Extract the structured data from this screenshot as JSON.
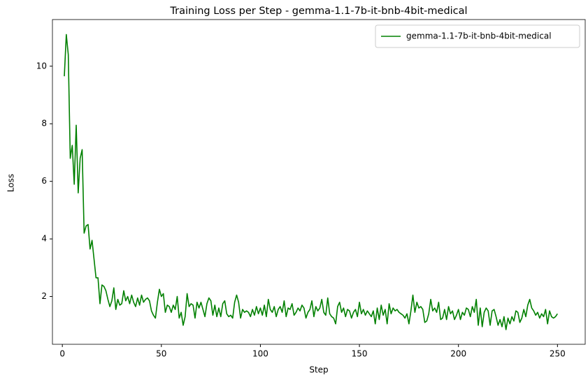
{
  "chart_data": {
    "type": "line",
    "title": "Training Loss per Step - gemma-1.1-7b-it-bnb-4bit-medical",
    "x_label": "Step",
    "y_label": "Loss",
    "x": [
      1,
      2,
      3,
      4,
      5,
      6,
      7,
      8,
      9,
      10,
      11,
      12,
      13,
      14,
      15,
      16,
      17,
      18,
      19,
      20,
      21,
      22,
      23,
      24,
      25,
      26,
      27,
      28,
      29,
      30,
      31,
      32,
      33,
      34,
      35,
      36,
      37,
      38,
      39,
      40,
      41,
      42,
      43,
      44,
      45,
      46,
      47,
      48,
      49,
      50,
      51,
      52,
      53,
      54,
      55,
      56,
      57,
      58,
      59,
      60,
      61,
      62,
      63,
      64,
      65,
      66,
      67,
      68,
      69,
      70,
      71,
      72,
      73,
      74,
      75,
      76,
      77,
      78,
      79,
      80,
      81,
      82,
      83,
      84,
      85,
      86,
      87,
      88,
      89,
      90,
      91,
      92,
      93,
      94,
      95,
      96,
      97,
      98,
      99,
      100,
      101,
      102,
      103,
      104,
      105,
      106,
      107,
      108,
      109,
      110,
      111,
      112,
      113,
      114,
      115,
      116,
      117,
      118,
      119,
      120,
      121,
      122,
      123,
      124,
      125,
      126,
      127,
      128,
      129,
      130,
      131,
      132,
      133,
      134,
      135,
      136,
      137,
      138,
      139,
      140,
      141,
      142,
      143,
      144,
      145,
      146,
      147,
      148,
      149,
      150,
      151,
      152,
      153,
      154,
      155,
      156,
      157,
      158,
      159,
      160,
      161,
      162,
      163,
      164,
      165,
      166,
      167,
      168,
      169,
      170,
      171,
      172,
      173,
      174,
      175,
      176,
      177,
      178,
      179,
      180,
      181,
      182,
      183,
      184,
      185,
      186,
      187,
      188,
      189,
      190,
      191,
      192,
      193,
      194,
      195,
      196,
      197,
      198,
      199,
      200,
      201,
      202,
      203,
      204,
      205,
      206,
      207,
      208,
      209,
      210,
      211,
      212,
      213,
      214,
      215,
      216,
      217,
      218,
      219,
      220,
      221,
      222,
      223,
      224,
      225,
      226,
      227,
      228,
      229,
      230,
      231,
      232,
      233,
      234,
      235,
      236,
      237,
      238,
      239,
      240,
      241,
      242,
      243,
      244,
      245,
      246,
      247,
      248,
      249,
      250
    ],
    "series": [
      {
        "name": "gemma-1.1-7b-it-bnb-4bit-medical",
        "color": "green",
        "values": [
          9.65,
          11.1,
          10.4,
          6.8,
          7.25,
          5.9,
          7.95,
          5.6,
          6.8,
          7.1,
          4.2,
          4.45,
          4.5,
          3.65,
          3.95,
          3.3,
          2.65,
          2.65,
          1.75,
          2.4,
          2.35,
          2.2,
          1.9,
          1.65,
          1.85,
          2.3,
          1.55,
          1.9,
          1.7,
          1.75,
          2.2,
          1.85,
          2.0,
          1.75,
          2.05,
          1.8,
          1.65,
          1.95,
          1.7,
          2.05,
          1.8,
          1.9,
          1.95,
          1.85,
          1.5,
          1.35,
          1.25,
          1.8,
          2.25,
          2.0,
          2.1,
          1.45,
          1.7,
          1.65,
          1.45,
          1.7,
          1.55,
          2.0,
          1.25,
          1.45,
          1.0,
          1.3,
          2.1,
          1.65,
          1.75,
          1.7,
          1.25,
          1.8,
          1.6,
          1.8,
          1.55,
          1.3,
          1.75,
          1.95,
          1.85,
          1.35,
          1.7,
          1.3,
          1.6,
          1.3,
          1.75,
          1.85,
          1.4,
          1.3,
          1.35,
          1.25,
          1.8,
          2.05,
          1.8,
          1.25,
          1.55,
          1.45,
          1.5,
          1.45,
          1.3,
          1.55,
          1.35,
          1.65,
          1.4,
          1.6,
          1.35,
          1.7,
          1.3,
          1.9,
          1.55,
          1.45,
          1.65,
          1.3,
          1.55,
          1.65,
          1.45,
          1.85,
          1.3,
          1.6,
          1.55,
          1.75,
          1.35,
          1.45,
          1.6,
          1.5,
          1.7,
          1.6,
          1.25,
          1.45,
          1.55,
          1.85,
          1.3,
          1.65,
          1.5,
          1.6,
          1.9,
          1.45,
          1.35,
          1.95,
          1.4,
          1.3,
          1.25,
          1.05,
          1.65,
          1.8,
          1.45,
          1.6,
          1.3,
          1.55,
          1.5,
          1.25,
          1.45,
          1.55,
          1.3,
          1.8,
          1.4,
          1.55,
          1.35,
          1.5,
          1.4,
          1.3,
          1.5,
          1.05,
          1.6,
          1.2,
          1.7,
          1.35,
          1.55,
          1.05,
          1.75,
          1.4,
          1.6,
          1.5,
          1.55,
          1.45,
          1.4,
          1.35,
          1.25,
          1.4,
          1.05,
          1.5,
          2.05,
          1.45,
          1.8,
          1.6,
          1.65,
          1.55,
          1.1,
          1.15,
          1.4,
          1.9,
          1.5,
          1.6,
          1.45,
          1.8,
          1.2,
          1.25,
          1.55,
          1.2,
          1.65,
          1.4,
          1.5,
          1.2,
          1.35,
          1.55,
          1.2,
          1.45,
          1.35,
          1.6,
          1.55,
          1.3,
          1.65,
          1.45,
          1.9,
          1.0,
          1.6,
          0.95,
          1.45,
          1.6,
          1.5,
          1.0,
          1.5,
          1.55,
          1.3,
          1.0,
          1.2,
          0.95,
          1.3,
          0.85,
          1.25,
          1.05,
          1.3,
          1.15,
          1.5,
          1.45,
          1.1,
          1.25,
          1.55,
          1.3,
          1.7,
          1.9,
          1.6,
          1.5,
          1.35,
          1.45,
          1.25,
          1.4,
          1.3,
          1.55,
          1.05,
          1.5,
          1.3,
          1.25,
          1.3,
          1.4
        ]
      }
    ],
    "xlim": [
      -5,
      264
    ],
    "ylim": [
      0.34,
      11.62
    ],
    "xticks": [
      0,
      50,
      100,
      150,
      200,
      250
    ],
    "yticks": [
      2,
      4,
      6,
      8,
      10
    ],
    "grid": false,
    "legend": "upper right"
  }
}
